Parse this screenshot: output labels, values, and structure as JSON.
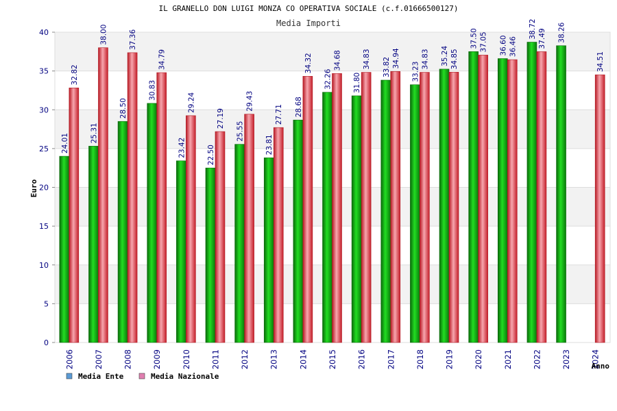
{
  "chart_data": {
    "type": "bar",
    "title": "IL GRANELLO DON LUIGI MONZA CO OPERATIVA SOCIALE (c.f.01666500127)",
    "subtitle": "Media Importi",
    "xlabel": "Anno",
    "ylabel": "Euro",
    "ylim": [
      0,
      40
    ],
    "yticks": [
      "0",
      "5",
      "10",
      "15",
      "20",
      "25",
      "30",
      "35",
      "40"
    ],
    "grid": true,
    "legend": "bottom-left",
    "categories": [
      "2006",
      "2007",
      "2008",
      "2009",
      "2010",
      "2011",
      "2012",
      "2013",
      "2014",
      "2015",
      "2016",
      "2017",
      "2018",
      "2019",
      "2020",
      "2021",
      "2022",
      "2023",
      "2024"
    ],
    "series": [
      {
        "name": "Media Ente",
        "legend_color": "#5b9bd5",
        "bar_color": "#1a9c1a",
        "values": [
          24.01,
          25.31,
          28.5,
          30.83,
          23.42,
          22.5,
          25.55,
          23.81,
          28.68,
          32.26,
          31.8,
          33.82,
          33.23,
          35.24,
          37.5,
          36.6,
          38.72,
          38.26,
          null
        ],
        "labels": [
          "24.01",
          "25.31",
          "28.50",
          "30.83",
          "23.42",
          "22.50",
          "25.55",
          "23.81",
          "28.68",
          "32.26",
          "31.80",
          "33.82",
          "33.23",
          "35.24",
          "37.50",
          "36.60",
          "38.72",
          "38.26",
          ""
        ]
      },
      {
        "name": "Media Nazionale",
        "legend_color": "#e07fb0",
        "bar_color": "#e0303a",
        "values": [
          32.82,
          38.0,
          37.36,
          34.79,
          29.24,
          27.19,
          29.43,
          27.71,
          34.32,
          34.68,
          34.83,
          34.94,
          34.83,
          34.85,
          37.05,
          36.46,
          37.49,
          null,
          34.51
        ],
        "labels": [
          "32.82",
          "38.00",
          "37.36",
          "34.79",
          "29.24",
          "27.19",
          "29.43",
          "27.71",
          "34.32",
          "34.68",
          "34.83",
          "34.94",
          "34.83",
          "34.85",
          "37.05",
          "36.46",
          "37.49",
          "",
          "34.51"
        ]
      }
    ]
  }
}
